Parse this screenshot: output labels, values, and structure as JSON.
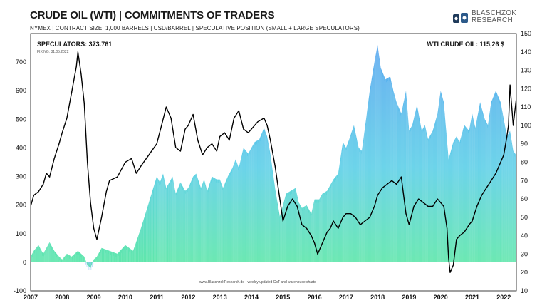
{
  "header": {
    "title": "CRUDE OIL (WTI) | COMMITMENTS OF TRADERS",
    "subtitle": "NYMEX | CONTRACT SIZE: 1,000 BARRELS | USD/BARREL | SPECULATIVE POSITION (SMALL + LARGE SPECULATORS)"
  },
  "logo": {
    "line1": "BLASCHZOK",
    "line2": "RESEARCH"
  },
  "annotations": {
    "speculators": "SPECULATORS: 373.761",
    "fixing": "FIXING: 31.05.2022",
    "wti": "WTI CRUDE OIL: 115,26 $",
    "footer": "www.BlaschzokResearch.de  -  weekly updated CoT and warehouse charts"
  },
  "colors": {
    "area_top": "#5aa8f0",
    "area_mid": "#5fd0e8",
    "area_bottom": "#5fe8a8",
    "area_neg": "#8fc8f5",
    "price_line": "#000000"
  },
  "chart_data": {
    "type": "area",
    "grid": false,
    "x_axis": {
      "range": [
        2007.0,
        2022.4
      ],
      "tick_labels": [
        "2007",
        "2008",
        "2009",
        "2010",
        "2011",
        "2012",
        "2013",
        "2014",
        "2015",
        "2016",
        "2017",
        "2018",
        "2019",
        "2020",
        "2021",
        "2022"
      ]
    },
    "y_left": {
      "range": [
        -100,
        800
      ],
      "tick_labels": [
        "-100",
        "0",
        "100",
        "200",
        "300",
        "400",
        "500",
        "600",
        "700"
      ]
    },
    "y_right": {
      "range": [
        10,
        150
      ],
      "tick_labels": [
        "10",
        "20",
        "30",
        "40",
        "50",
        "60",
        "70",
        "80",
        "90",
        "100",
        "110",
        "120",
        "130",
        "140",
        "150"
      ]
    },
    "series": [
      {
        "axis": "left",
        "x": [
          2007.0,
          2007.1,
          2007.25,
          2007.4,
          2007.5,
          2007.6,
          2007.75,
          2007.9,
          2008.0,
          2008.15,
          2008.3,
          2008.5,
          2008.7,
          2008.8,
          2008.9,
          2009.0,
          2009.1,
          2009.25,
          2009.5,
          2009.75,
          2010.0,
          2010.25,
          2010.5,
          2010.75,
          2011.0,
          2011.1,
          2011.2,
          2011.3,
          2011.5,
          2011.6,
          2011.75,
          2011.9,
          2012.0,
          2012.15,
          2012.25,
          2012.4,
          2012.5,
          2012.6,
          2012.75,
          2012.9,
          2013.0,
          2013.1,
          2013.25,
          2013.4,
          2013.5,
          2013.6,
          2013.75,
          2013.9,
          2014.0,
          2014.1,
          2014.25,
          2014.4,
          2014.5,
          2014.6,
          2014.75,
          2014.9,
          2015.0,
          2015.1,
          2015.25,
          2015.4,
          2015.5,
          2015.6,
          2015.75,
          2015.9,
          2016.0,
          2016.15,
          2016.25,
          2016.4,
          2016.5,
          2016.6,
          2016.75,
          2016.9,
          2017.0,
          2017.1,
          2017.25,
          2017.4,
          2017.5,
          2017.6,
          2017.75,
          2017.9,
          2018.0,
          2018.1,
          2018.25,
          2018.4,
          2018.5,
          2018.6,
          2018.75,
          2018.9,
          2019.0,
          2019.1,
          2019.25,
          2019.4,
          2019.5,
          2019.6,
          2019.75,
          2019.9,
          2020.0,
          2020.1,
          2020.25,
          2020.4,
          2020.5,
          2020.6,
          2020.75,
          2020.9,
          2021.0,
          2021.1,
          2021.25,
          2021.4,
          2021.5,
          2021.6,
          2021.75,
          2021.9,
          2022.0,
          2022.1,
          2022.2,
          2022.3,
          2022.4
        ],
        "values": [
          20,
          40,
          60,
          30,
          50,
          70,
          40,
          20,
          10,
          30,
          20,
          40,
          20,
          -10,
          -20,
          10,
          20,
          50,
          40,
          30,
          60,
          40,
          120,
          210,
          300,
          280,
          310,
          260,
          300,
          240,
          280,
          250,
          260,
          300,
          310,
          260,
          290,
          250,
          300,
          290,
          290,
          260,
          300,
          330,
          360,
          330,
          400,
          380,
          400,
          420,
          430,
          470,
          440,
          380,
          260,
          160,
          200,
          240,
          250,
          260,
          210,
          190,
          200,
          170,
          220,
          220,
          240,
          250,
          270,
          290,
          310,
          420,
          400,
          430,
          480,
          400,
          390,
          470,
          600,
          700,
          760,
          680,
          640,
          650,
          600,
          560,
          520,
          600,
          460,
          480,
          550,
          460,
          480,
          430,
          460,
          520,
          600,
          560,
          360,
          420,
          440,
          420,
          480,
          460,
          520,
          470,
          560,
          500,
          480,
          560,
          600,
          560,
          500,
          440,
          460,
          390,
          374
        ]
      },
      {
        "axis": "right",
        "x": [
          2007.0,
          2007.1,
          2007.25,
          2007.4,
          2007.5,
          2007.6,
          2007.75,
          2007.9,
          2008.0,
          2008.15,
          2008.3,
          2008.45,
          2008.5,
          2008.6,
          2008.7,
          2008.8,
          2008.9,
          2009.0,
          2009.1,
          2009.25,
          2009.4,
          2009.5,
          2009.75,
          2010.0,
          2010.2,
          2010.35,
          2010.5,
          2010.75,
          2011.0,
          2011.15,
          2011.3,
          2011.45,
          2011.6,
          2011.75,
          2011.9,
          2012.0,
          2012.15,
          2012.3,
          2012.45,
          2012.6,
          2012.75,
          2012.9,
          2013.0,
          2013.15,
          2013.3,
          2013.45,
          2013.6,
          2013.75,
          2013.9,
          2014.0,
          2014.2,
          2014.4,
          2014.5,
          2014.6,
          2014.75,
          2014.9,
          2015.0,
          2015.15,
          2015.3,
          2015.45,
          2015.6,
          2015.75,
          2015.9,
          2016.0,
          2016.1,
          2016.25,
          2016.4,
          2016.5,
          2016.6,
          2016.75,
          2016.9,
          2017.0,
          2017.15,
          2017.3,
          2017.45,
          2017.6,
          2017.75,
          2017.9,
          2018.0,
          2018.15,
          2018.3,
          2018.45,
          2018.6,
          2018.75,
          2018.9,
          2019.0,
          2019.15,
          2019.3,
          2019.45,
          2019.6,
          2019.75,
          2019.9,
          2020.0,
          2020.1,
          2020.2,
          2020.25,
          2020.3,
          2020.4,
          2020.5,
          2020.6,
          2020.75,
          2020.9,
          2021.0,
          2021.15,
          2021.3,
          2021.45,
          2021.6,
          2021.75,
          2021.9,
          2022.0,
          2022.1,
          2022.15,
          2022.2,
          2022.3,
          2022.4
        ],
        "values": [
          56,
          62,
          64,
          68,
          74,
          72,
          82,
          90,
          96,
          104,
          118,
          132,
          140,
          128,
          112,
          80,
          58,
          44,
          38,
          50,
          64,
          70,
          72,
          80,
          82,
          74,
          78,
          84,
          90,
          100,
          110,
          104,
          88,
          86,
          98,
          100,
          106,
          92,
          84,
          88,
          90,
          86,
          94,
          96,
          92,
          104,
          108,
          98,
          96,
          98,
          102,
          104,
          100,
          92,
          78,
          60,
          48,
          56,
          60,
          56,
          46,
          44,
          40,
          36,
          30,
          36,
          42,
          44,
          48,
          44,
          50,
          52,
          52,
          50,
          46,
          48,
          50,
          56,
          62,
          66,
          68,
          70,
          68,
          72,
          52,
          46,
          56,
          60,
          58,
          56,
          56,
          60,
          58,
          56,
          44,
          28,
          20,
          24,
          38,
          40,
          42,
          46,
          48,
          56,
          62,
          66,
          70,
          74,
          80,
          84,
          94,
          100,
          122,
          100,
          115
        ]
      }
    ]
  }
}
